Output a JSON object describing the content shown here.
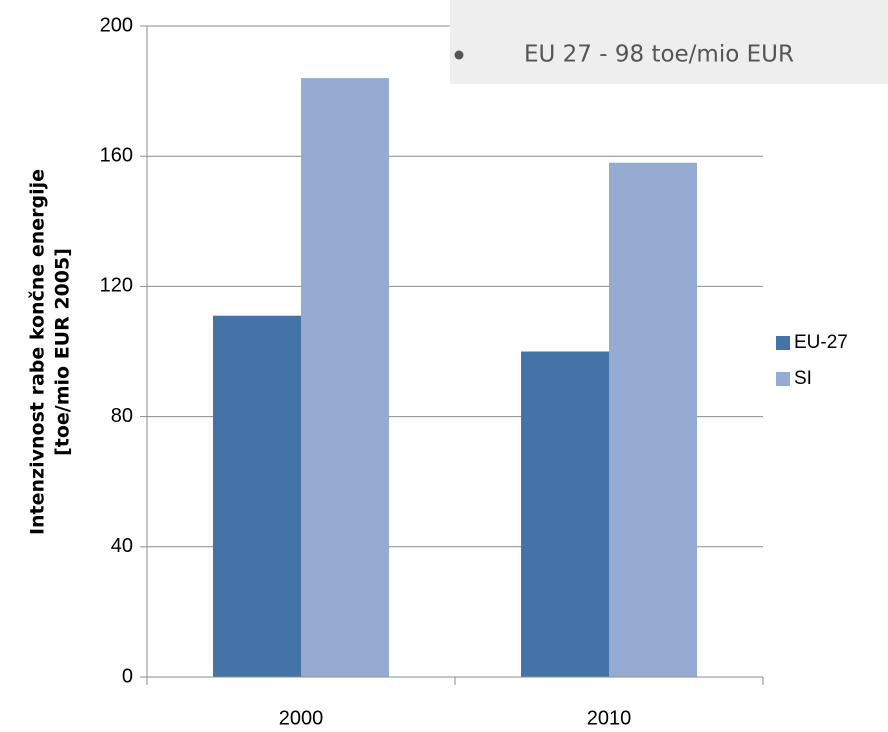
{
  "chart_data": {
    "type": "bar",
    "y_label": [
      "Intenzivnost rabe končne energije",
      "[toe/mio EUR 2005]"
    ],
    "annotation": "EU 27 - 98 toe/mio EUR",
    "categories": [
      "2000",
      "2010"
    ],
    "series": [
      {
        "name": "EU-27",
        "color": "#4573a7",
        "values": [
          111,
          100
        ]
      },
      {
        "name": "SI",
        "color": "#95abd2",
        "values": [
          184,
          158
        ]
      }
    ],
    "ylim": [
      0,
      200
    ],
    "yticks": [
      0,
      40,
      80,
      120,
      160,
      200
    ],
    "grid": true,
    "legend": "right"
  }
}
